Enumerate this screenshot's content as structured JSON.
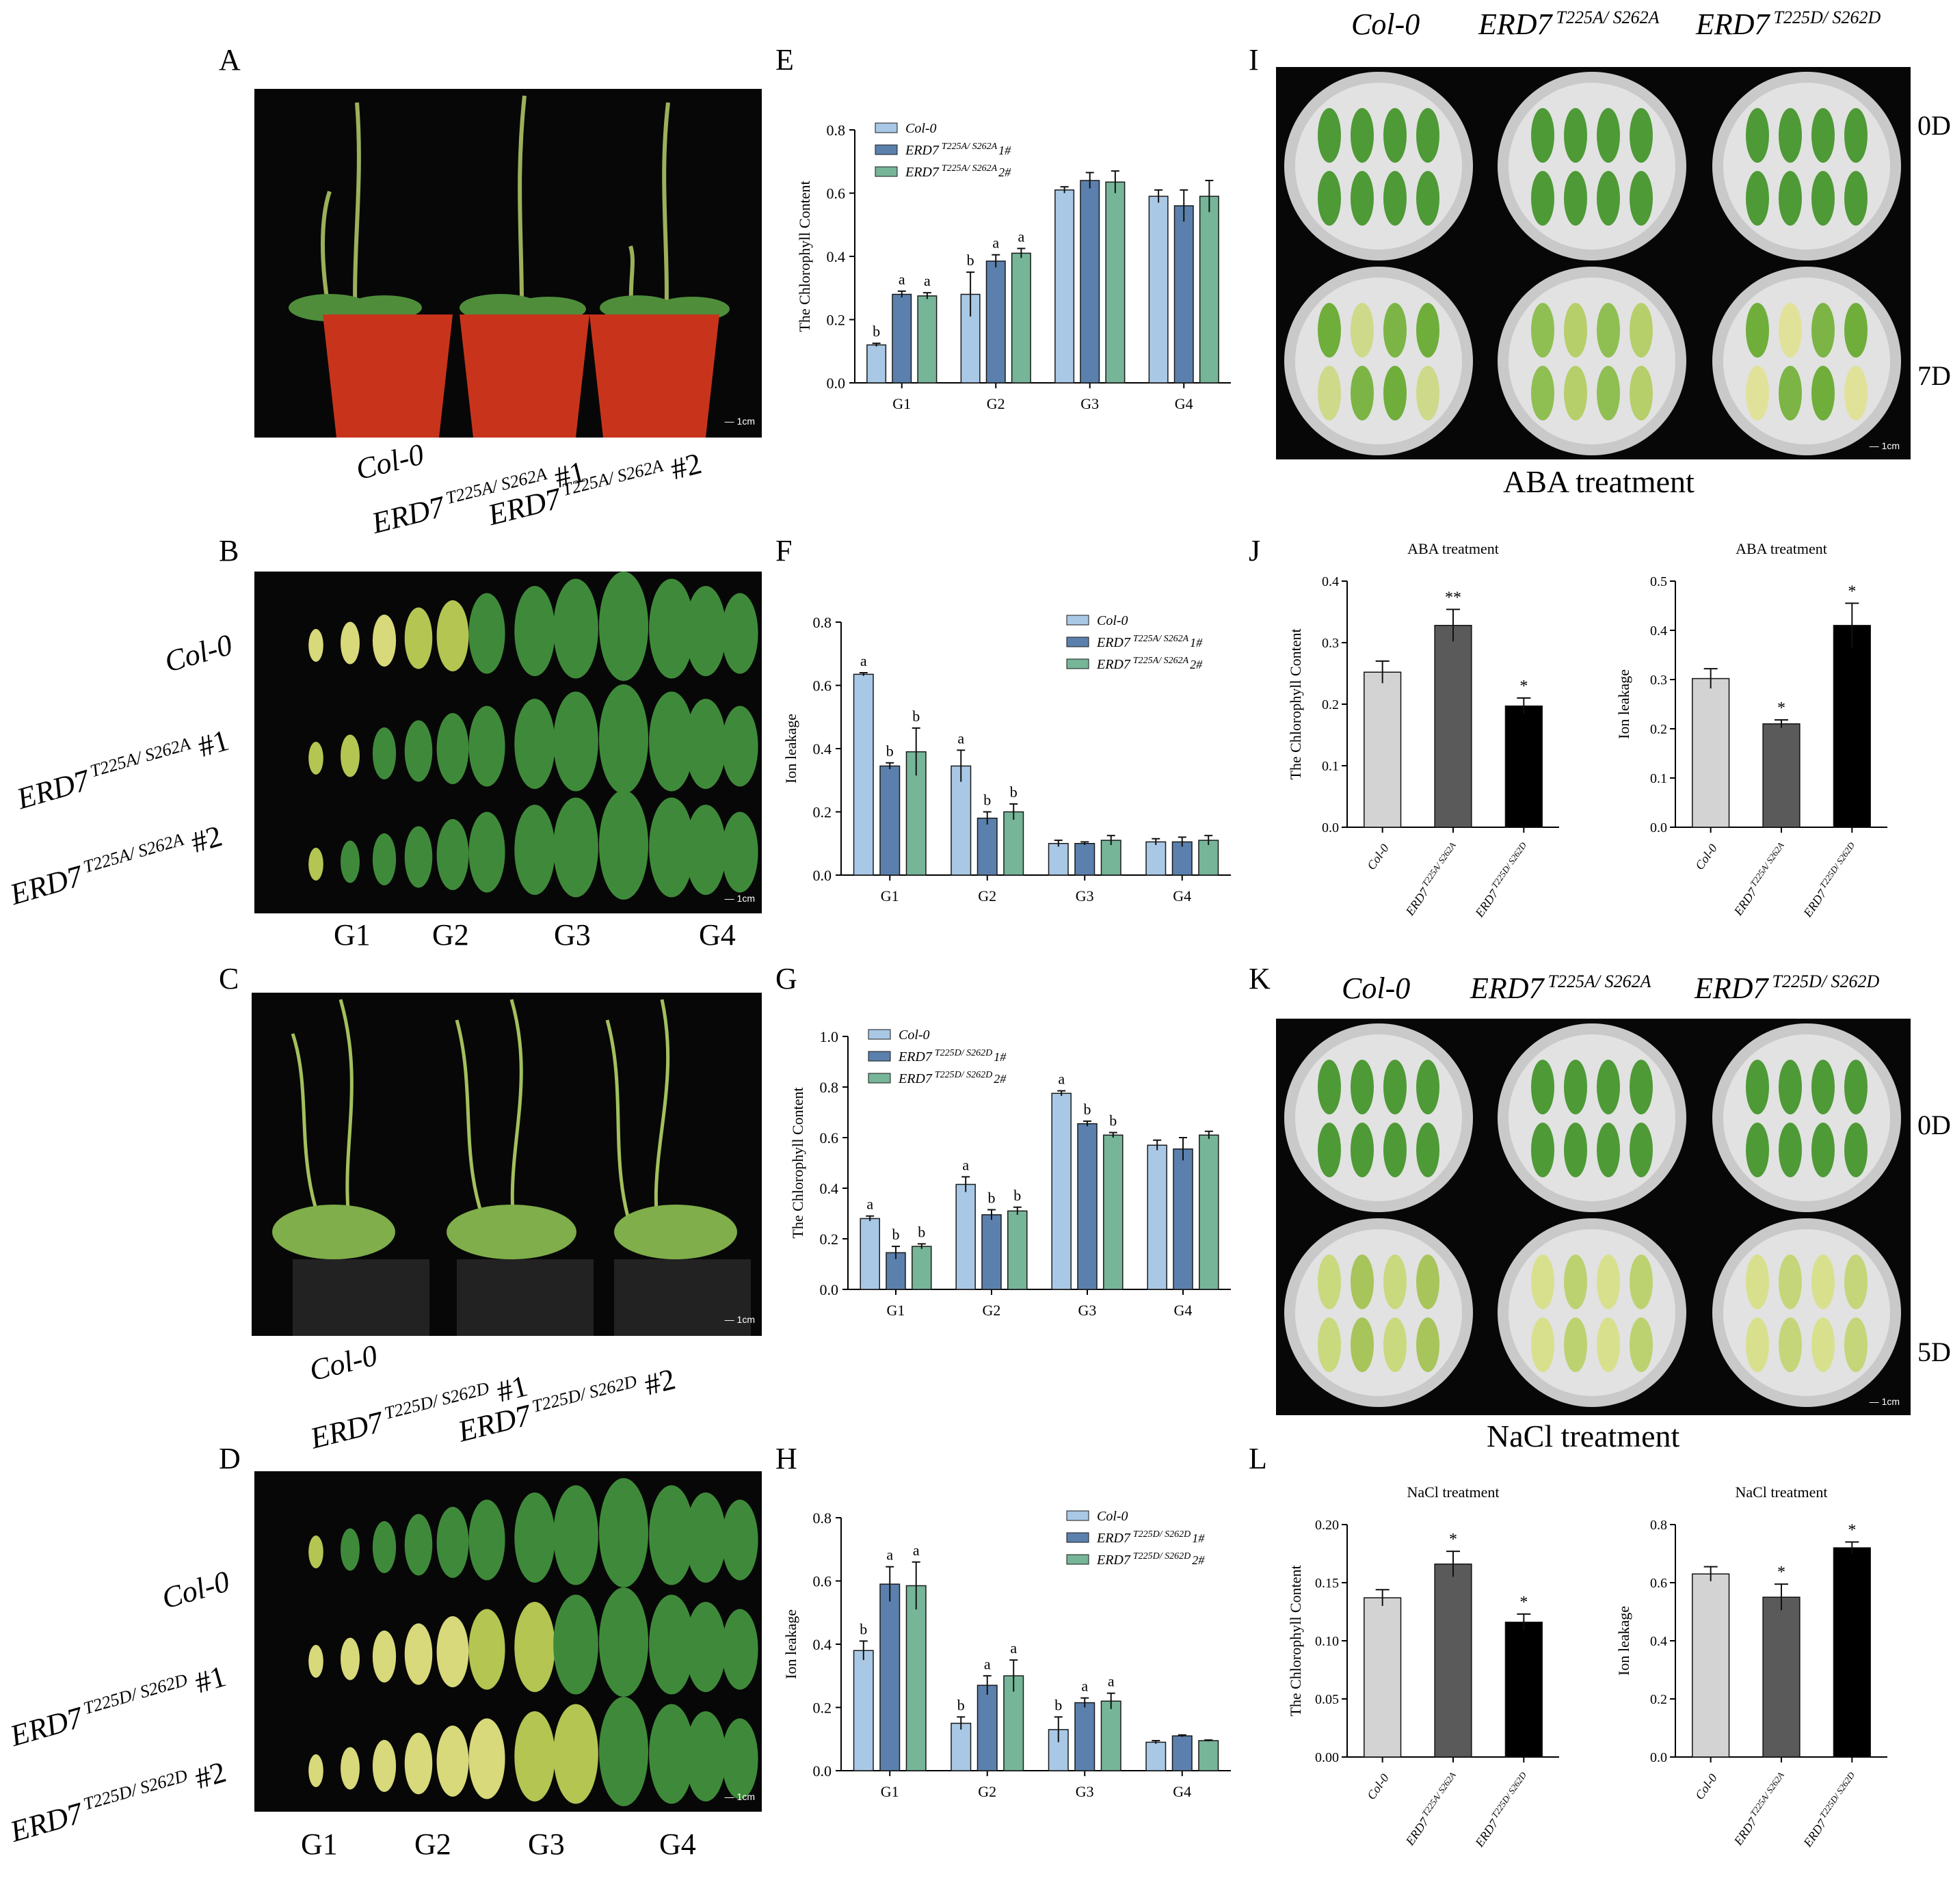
{
  "panels": {
    "A": "A",
    "B": "B",
    "C": "C",
    "D": "D",
    "E": "E",
    "F": "F",
    "G": "G",
    "H": "H",
    "I": "I",
    "J": "J",
    "K": "K",
    "L": "L"
  },
  "photo_A": {
    "labels": [
      "Col-0",
      "ERD7",
      "ERD7"
    ],
    "sups": [
      "T225A/ S262A",
      "T225A/ S262A"
    ],
    "tags": [
      "#1",
      "#2"
    ],
    "scale": "1cm"
  },
  "photo_B": {
    "rows": [
      "Col-0",
      "ERD7",
      "ERD7"
    ],
    "sups": [
      "T225A/ S262A",
      "T225A/ S262A"
    ],
    "tags": [
      "#1",
      "#2"
    ],
    "groups": [
      "G1",
      "G2",
      "G3",
      "G4"
    ],
    "scale": "1cm"
  },
  "photo_C": {
    "labels": [
      "Col-0",
      "ERD7",
      "ERD7"
    ],
    "sups": [
      "T225D/ S262D",
      "T225D/ S262D"
    ],
    "tags": [
      "#1",
      "#2"
    ],
    "scale": "1cm"
  },
  "photo_D": {
    "rows": [
      "Col-0",
      "ERD7",
      "ERD7"
    ],
    "sups": [
      "T225D/ S262D",
      "T225D/ S262D"
    ],
    "tags": [
      "#1",
      "#2"
    ],
    "groups": [
      "G1",
      "G2",
      "G3",
      "G4"
    ],
    "scale": "1cm"
  },
  "photo_I": {
    "cols": [
      "Col-0",
      "ERD7",
      "ERD7"
    ],
    "sups": [
      "T225A/ S262A",
      "T225D/ S262D"
    ],
    "days": [
      "0D",
      "7D"
    ],
    "caption": "ABA treatment",
    "scale": "1cm"
  },
  "photo_K": {
    "cols": [
      "Col-0",
      "ERD7",
      "ERD7"
    ],
    "sups": [
      "T225A/ S262A",
      "T225D/ S262D"
    ],
    "days": [
      "0D",
      "5D"
    ],
    "caption": "NaCl treatment",
    "scale": "1cm"
  },
  "colors": {
    "col0": "#a9c8e6",
    "line1": "#5b80ad",
    "line2": "#76b598",
    "gray1": "#d3d3d3",
    "gray2": "#5a5a5a",
    "black": "#000000"
  },
  "chart_data": [
    {
      "id": "E",
      "type": "bar",
      "ylabel": "The Chlorophyll Content",
      "ylim": [
        0,
        0.8
      ],
      "yticks": [
        "0.0",
        "0.2",
        "0.4",
        "0.6",
        "0.8"
      ],
      "categories": [
        "G1",
        "G2",
        "G3",
        "G4"
      ],
      "legend_pos": "top-left",
      "series": [
        {
          "name": "Col-0",
          "sup": "",
          "values": [
            0.12,
            0.28,
            0.61,
            0.59
          ],
          "err": [
            0.005,
            0.07,
            0.01,
            0.02
          ],
          "letters": [
            "b",
            "b",
            "",
            ""
          ]
        },
        {
          "name": "ERD7",
          "sup": "T225A/ S262A",
          "suffix": "1#",
          "values": [
            0.28,
            0.385,
            0.64,
            0.56
          ],
          "err": [
            0.01,
            0.02,
            0.025,
            0.05
          ],
          "letters": [
            "a",
            "a",
            "",
            ""
          ]
        },
        {
          "name": "ERD7",
          "sup": "T225A/ S262A",
          "suffix": "2#",
          "values": [
            0.275,
            0.41,
            0.635,
            0.59
          ],
          "err": [
            0.01,
            0.015,
            0.035,
            0.05
          ],
          "letters": [
            "a",
            "a",
            "",
            ""
          ]
        }
      ]
    },
    {
      "id": "F",
      "type": "bar",
      "ylabel": "Ion leakage",
      "ylim": [
        0,
        0.8
      ],
      "yticks": [
        "0.0",
        "0.2",
        "0.4",
        "0.6",
        "0.8"
      ],
      "categories": [
        "G1",
        "G2",
        "G3",
        "G4"
      ],
      "legend_pos": "top-right",
      "series": [
        {
          "name": "Col-0",
          "sup": "",
          "values": [
            0.635,
            0.345,
            0.1,
            0.105
          ],
          "err": [
            0.005,
            0.05,
            0.01,
            0.01
          ],
          "letters": [
            "a",
            "a",
            "",
            ""
          ]
        },
        {
          "name": "ERD7",
          "sup": "T225A/ S262A",
          "suffix": "1#",
          "values": [
            0.345,
            0.18,
            0.1,
            0.105
          ],
          "err": [
            0.01,
            0.02,
            0.005,
            0.015
          ],
          "letters": [
            "b",
            "b",
            "",
            ""
          ]
        },
        {
          "name": "ERD7",
          "sup": "T225A/ S262A",
          "suffix": "2#",
          "values": [
            0.39,
            0.2,
            0.11,
            0.11
          ],
          "err": [
            0.075,
            0.025,
            0.015,
            0.015
          ],
          "letters": [
            "b",
            "b",
            "",
            ""
          ]
        }
      ]
    },
    {
      "id": "G",
      "type": "bar",
      "ylabel": "The Chlorophyll Content",
      "ylim": [
        0,
        1.0
      ],
      "yticks": [
        "0.0",
        "0.2",
        "0.4",
        "0.6",
        "0.8",
        "1.0"
      ],
      "categories": [
        "G1",
        "G2",
        "G3",
        "G4"
      ],
      "legend_pos": "top-left",
      "series": [
        {
          "name": "Col-0",
          "sup": "",
          "values": [
            0.28,
            0.415,
            0.775,
            0.57
          ],
          "err": [
            0.01,
            0.03,
            0.01,
            0.02
          ],
          "letters": [
            "a",
            "a",
            "a",
            ""
          ]
        },
        {
          "name": "ERD7",
          "sup": "T225D/ S262D",
          "suffix": "1#",
          "values": [
            0.145,
            0.295,
            0.655,
            0.555
          ],
          "err": [
            0.025,
            0.02,
            0.01,
            0.045
          ],
          "letters": [
            "b",
            "b",
            "b",
            ""
          ]
        },
        {
          "name": "ERD7",
          "sup": "T225D/ S262D",
          "suffix": "2#",
          "values": [
            0.17,
            0.31,
            0.61,
            0.61
          ],
          "err": [
            0.01,
            0.015,
            0.01,
            0.015
          ],
          "letters": [
            "b",
            "b",
            "b",
            ""
          ]
        }
      ]
    },
    {
      "id": "H",
      "type": "bar",
      "ylabel": "Ion leakage",
      "ylim": [
        0,
        0.8
      ],
      "yticks": [
        "0.0",
        "0.2",
        "0.4",
        "0.6",
        "0.8"
      ],
      "categories": [
        "G1",
        "G2",
        "G3",
        "G4"
      ],
      "legend_pos": "top-right",
      "series": [
        {
          "name": "Col-0",
          "sup": "",
          "values": [
            0.38,
            0.15,
            0.13,
            0.09
          ],
          "err": [
            0.03,
            0.02,
            0.04,
            0.005
          ],
          "letters": [
            "b",
            "b",
            "b",
            ""
          ]
        },
        {
          "name": "ERD7",
          "sup": "T225D/ S262D",
          "suffix": "1#",
          "values": [
            0.59,
            0.27,
            0.215,
            0.11
          ],
          "err": [
            0.055,
            0.03,
            0.015,
            0.003
          ],
          "letters": [
            "a",
            "a",
            "a",
            ""
          ]
        },
        {
          "name": "ERD7",
          "sup": "T225D/ S262D",
          "suffix": "2#",
          "values": [
            0.585,
            0.3,
            0.22,
            0.095
          ],
          "err": [
            0.075,
            0.05,
            0.025,
            0.002
          ],
          "letters": [
            "a",
            "a",
            "a",
            ""
          ]
        }
      ]
    },
    {
      "id": "J1",
      "type": "bar",
      "title": "ABA treatment",
      "ylabel": "The Chlorophyll Content",
      "ylim": [
        0,
        0.4
      ],
      "yticks": [
        "0.0",
        "0.1",
        "0.2",
        "0.3",
        "0.4"
      ],
      "categories": [
        "Col-0",
        "ERD7",
        "ERD7"
      ],
      "sups": [
        "",
        "T225A/ S262A",
        "T225D/ S262D"
      ],
      "values": [
        0.252,
        0.328,
        0.197
      ],
      "err": [
        0.018,
        0.026,
        0.013
      ],
      "stars": [
        "",
        "**",
        "*"
      ]
    },
    {
      "id": "J2",
      "type": "bar",
      "title": "ABA treatment",
      "ylabel": "Ion leakage",
      "ylim": [
        0,
        0.5
      ],
      "yticks": [
        "0.0",
        "0.1",
        "0.2",
        "0.3",
        "0.4",
        "0.5"
      ],
      "categories": [
        "Col-0",
        "ERD7",
        "ERD7"
      ],
      "sups": [
        "",
        "T225A/ S262A",
        "T225D/ S262D"
      ],
      "values": [
        0.302,
        0.21,
        0.41
      ],
      "err": [
        0.02,
        0.008,
        0.045
      ],
      "stars": [
        "",
        "*",
        "*"
      ]
    },
    {
      "id": "L1",
      "type": "bar",
      "title": "NaCl treatment",
      "ylabel": "The Chlorophyll Content",
      "ylim": [
        0,
        0.2
      ],
      "yticks": [
        "0.00",
        "0.05",
        "0.10",
        "0.15",
        "0.20"
      ],
      "categories": [
        "Col-0",
        "ERD7",
        "ERD7"
      ],
      "sups": [
        "",
        "T225A/ S262A",
        "T225D/ S262D"
      ],
      "values": [
        0.137,
        0.166,
        0.116
      ],
      "err": [
        0.007,
        0.011,
        0.007
      ],
      "stars": [
        "",
        "*",
        "*"
      ]
    },
    {
      "id": "L2",
      "type": "bar",
      "title": "NaCl treatment",
      "ylabel": "Ion leakage",
      "ylim": [
        0,
        0.8
      ],
      "yticks": [
        "0.0",
        "0.2",
        "0.4",
        "0.6",
        "0.8"
      ],
      "categories": [
        "Col-0",
        "ERD7",
        "ERD7"
      ],
      "sups": [
        "",
        "T225A/ S262A",
        "T225D/ S262D"
      ],
      "values": [
        0.63,
        0.55,
        0.72
      ],
      "err": [
        0.025,
        0.045,
        0.02
      ],
      "stars": [
        "",
        "*",
        "*"
      ]
    }
  ]
}
